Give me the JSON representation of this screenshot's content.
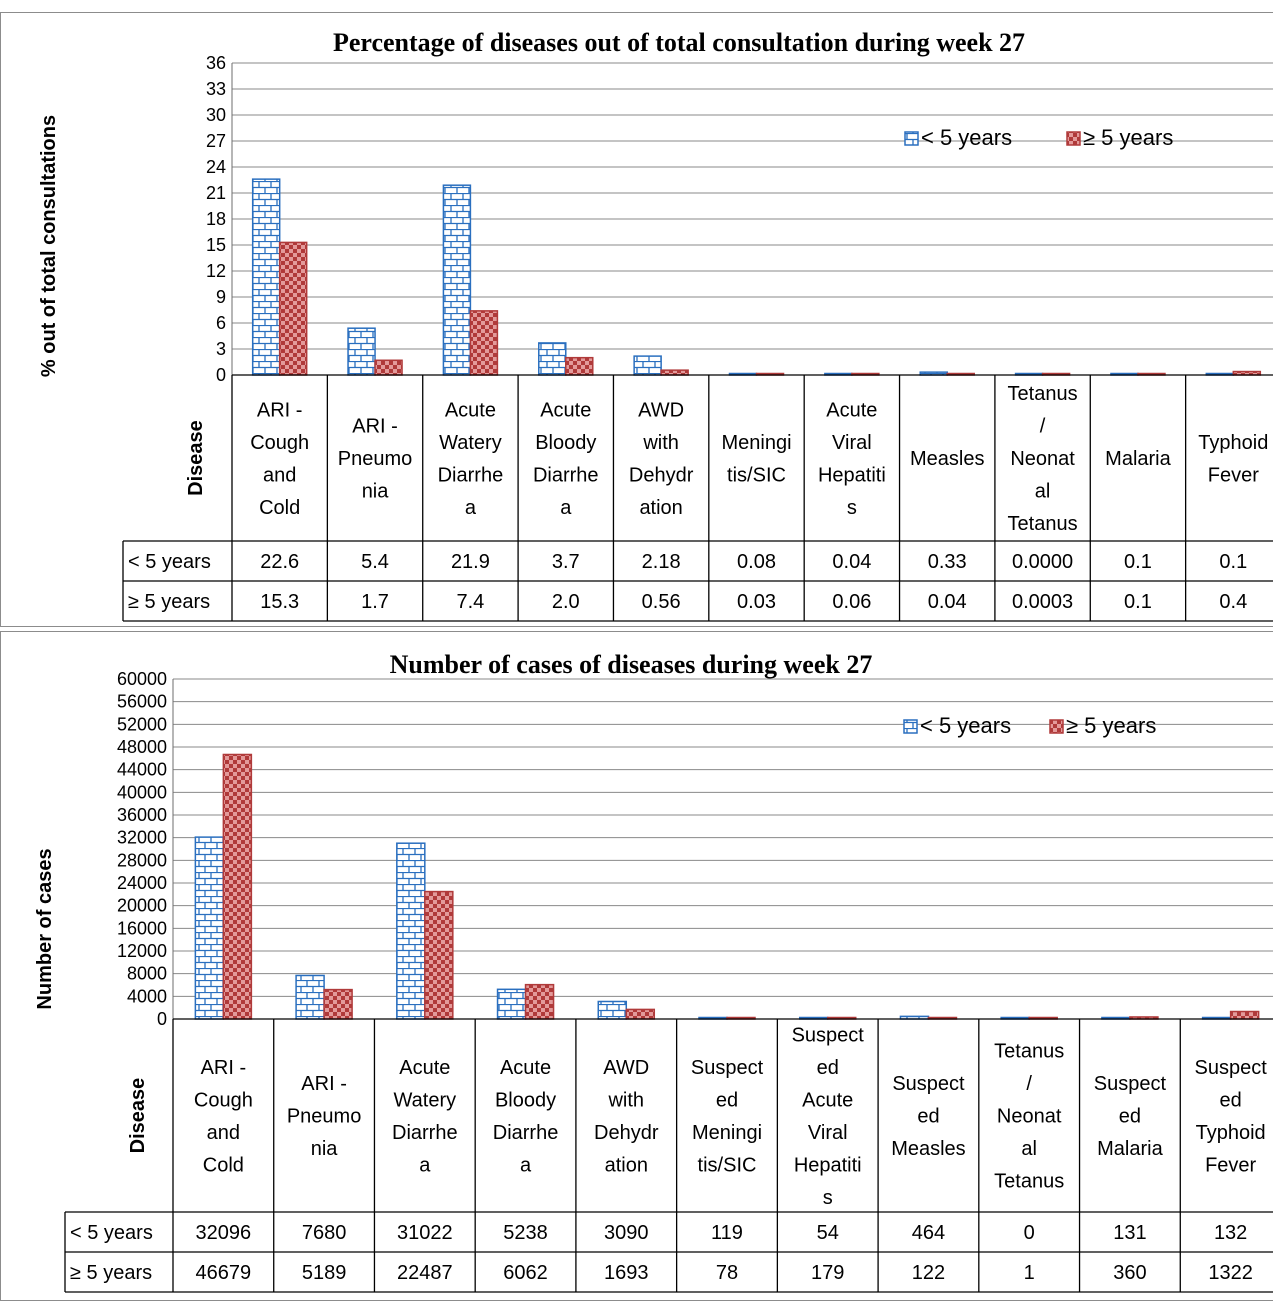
{
  "legend": {
    "under5": "< 5 years",
    "over5": "≥ 5 years"
  },
  "colors": {
    "under5_stroke": "#2a6fbf",
    "over5_stroke": "#b03a3a",
    "over5_fill": "#e39a9a"
  },
  "chart_data": [
    {
      "type": "bar",
      "title": "Percentage of diseases out of total consultation during week 27",
      "ylabel": "% out of total consultations",
      "xlabel": "Disease",
      "ylim": [
        0,
        36
      ],
      "yticks": [
        "0",
        "3",
        "6",
        "9",
        "12",
        "15",
        "18",
        "21",
        "24",
        "27",
        "30",
        "33",
        "36"
      ],
      "grid": true,
      "legend_position": "top-right",
      "categories": [
        [
          "ARI -",
          "Cough",
          "and",
          "Cold"
        ],
        [
          "ARI -",
          "Pneumo",
          "nia"
        ],
        [
          "Acute",
          "Watery",
          "Diarrhe",
          "a"
        ],
        [
          "Acute",
          "Bloody",
          "Diarrhe",
          "a"
        ],
        [
          "AWD",
          "with",
          "Dehydr",
          "ation"
        ],
        [
          "Meningi",
          "tis/SIC"
        ],
        [
          "Acute",
          "Viral",
          "Hepatiti",
          "s"
        ],
        [
          "Measles"
        ],
        [
          "Tetanus",
          "/",
          "Neonat",
          "al",
          "Tetanus"
        ],
        [
          "Malaria"
        ],
        [
          "Typhoid",
          "Fever"
        ]
      ],
      "series": [
        {
          "name": "< 5 years",
          "values": [
            22.6,
            5.4,
            21.9,
            3.7,
            2.18,
            0.08,
            0.04,
            0.33,
            0.0,
            0.1,
            0.1
          ],
          "labels": [
            "22.6",
            "5.4",
            "21.9",
            "3.7",
            "2.18",
            "0.08",
            "0.04",
            "0.33",
            "0.0000",
            "0.1",
            "0.1"
          ]
        },
        {
          "name": "≥ 5 years",
          "values": [
            15.3,
            1.7,
            7.4,
            2.0,
            0.56,
            0.03,
            0.06,
            0.04,
            0.0003,
            0.1,
            0.4
          ],
          "labels": [
            "15.3",
            "1.7",
            "7.4",
            "2.0",
            "0.56",
            "0.03",
            "0.06",
            "0.04",
            "0.0003",
            "0.1",
            "0.4"
          ]
        }
      ]
    },
    {
      "type": "bar",
      "title": "Number of cases of diseases during week 27",
      "ylabel": "Number of cases",
      "xlabel": "Disease",
      "ylim": [
        0,
        60000
      ],
      "yticks": [
        "0",
        "4000",
        "8000",
        "12000",
        "16000",
        "20000",
        "24000",
        "28000",
        "32000",
        "36000",
        "40000",
        "44000",
        "48000",
        "52000",
        "56000",
        "60000"
      ],
      "grid": true,
      "legend_position": "top-right",
      "categories": [
        [
          "ARI -",
          "Cough",
          "and",
          "Cold"
        ],
        [
          "ARI -",
          "Pneumo",
          "nia"
        ],
        [
          "Acute",
          "Watery",
          "Diarrhe",
          "a"
        ],
        [
          "Acute",
          "Bloody",
          "Diarrhe",
          "a"
        ],
        [
          "AWD",
          "with",
          "Dehydr",
          "ation"
        ],
        [
          "Suspect",
          "ed",
          "Meningi",
          "tis/SIC"
        ],
        [
          "Suspect",
          "ed",
          "Acute",
          "Viral",
          "Hepatiti",
          "s"
        ],
        [
          "Suspect",
          "ed",
          "Measles"
        ],
        [
          "Tetanus",
          "/",
          "Neonat",
          "al",
          "Tetanus"
        ],
        [
          "Suspect",
          "ed",
          "Malaria"
        ],
        [
          "Suspect",
          "ed",
          "Typhoid",
          "Fever"
        ]
      ],
      "series": [
        {
          "name": "< 5 years",
          "values": [
            32096,
            7680,
            31022,
            5238,
            3090,
            119,
            54,
            464,
            0,
            131,
            132
          ],
          "labels": [
            "32096",
            "7680",
            "31022",
            "5238",
            "3090",
            "119",
            "54",
            "464",
            "0",
            "131",
            "132"
          ]
        },
        {
          "name": "≥ 5 years",
          "values": [
            46679,
            5189,
            22487,
            6062,
            1693,
            78,
            179,
            122,
            1,
            360,
            1322
          ],
          "labels": [
            "46679",
            "5189",
            "22487",
            "6062",
            "1693",
            "78",
            "179",
            "122",
            "1",
            "360",
            "1322"
          ]
        }
      ]
    }
  ]
}
